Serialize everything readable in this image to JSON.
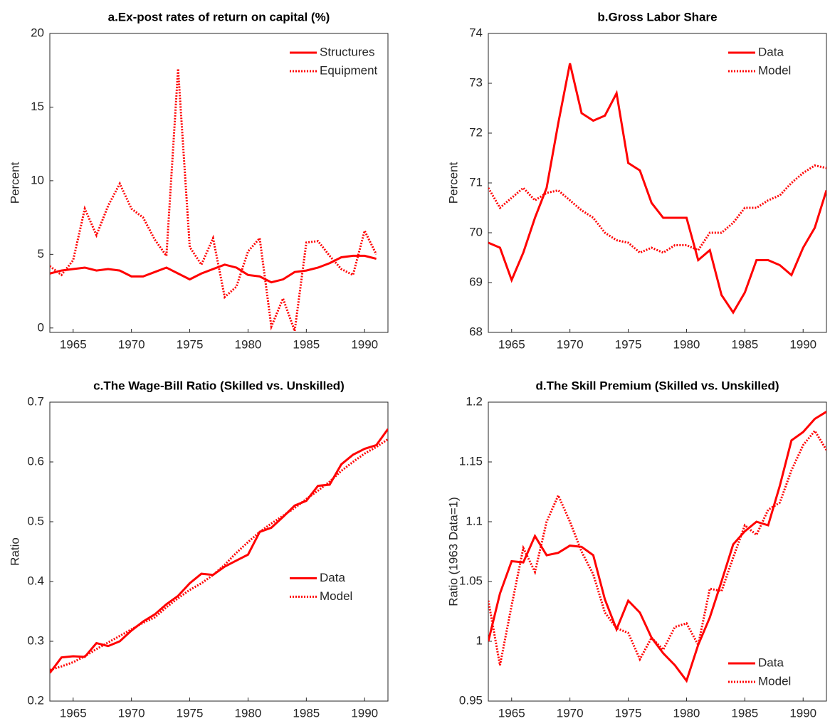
{
  "chart_data": [
    {
      "type": "line",
      "title": "a.Ex-post rates of return on capital (%)",
      "y_label": "Percent",
      "x": [
        1963,
        1964,
        1965,
        1966,
        1967,
        1968,
        1969,
        1970,
        1971,
        1972,
        1973,
        1974,
        1975,
        1976,
        1977,
        1978,
        1979,
        1980,
        1981,
        1982,
        1983,
        1984,
        1985,
        1986,
        1987,
        1988,
        1989,
        1990,
        1991
      ],
      "series": [
        {
          "name": "Structures",
          "color": "#ff0000",
          "dash": "solid",
          "values": [
            3.7,
            3.9,
            4.0,
            4.1,
            3.9,
            4.0,
            3.9,
            3.5,
            3.5,
            3.8,
            4.1,
            3.7,
            3.3,
            3.7,
            4.0,
            4.3,
            4.1,
            3.6,
            3.5,
            3.1,
            3.3,
            3.8,
            3.9,
            4.1,
            4.4,
            4.8,
            4.9,
            4.9,
            4.7
          ]
        },
        {
          "name": "Equipment",
          "color": "#ff0000",
          "dash": "dotted",
          "values": [
            4.2,
            3.6,
            4.6,
            8.1,
            6.3,
            8.3,
            9.8,
            8.1,
            7.5,
            6.0,
            4.9,
            17.6,
            5.5,
            4.3,
            6.1,
            2.1,
            2.8,
            5.2,
            6.1,
            0.1,
            2.0,
            -0.2,
            5.8,
            5.9,
            4.9,
            4.0,
            3.6,
            6.6,
            5.0
          ]
        }
      ],
      "xlim": [
        1963,
        1992
      ],
      "xticks": [
        1965,
        1970,
        1975,
        1980,
        1985,
        1990
      ],
      "ylim": [
        -0.3,
        20
      ],
      "yticks": [
        0,
        5,
        10,
        15,
        20
      ],
      "legend": "northeast"
    },
    {
      "type": "line",
      "title": "b.Gross Labor Share",
      "y_label": "Percent",
      "x": [
        1963,
        1964,
        1965,
        1966,
        1967,
        1968,
        1969,
        1970,
        1971,
        1972,
        1973,
        1974,
        1975,
        1976,
        1977,
        1978,
        1979,
        1980,
        1981,
        1982,
        1983,
        1984,
        1985,
        1986,
        1987,
        1988,
        1989,
        1990,
        1991,
        1992
      ],
      "series": [
        {
          "name": "Data",
          "color": "#ff0000",
          "dash": "solid",
          "values": [
            69.8,
            69.7,
            69.05,
            69.6,
            70.3,
            70.9,
            72.2,
            73.4,
            72.4,
            72.25,
            72.35,
            72.8,
            71.4,
            71.25,
            70.6,
            70.3,
            70.3,
            70.3,
            69.45,
            69.65,
            68.75,
            68.4,
            68.8,
            69.45,
            69.45,
            69.35,
            69.15,
            69.7,
            70.1,
            70.85
          ]
        },
        {
          "name": "Model",
          "color": "#ff0000",
          "dash": "dotted",
          "values": [
            70.9,
            70.5,
            70.7,
            70.9,
            70.65,
            70.8,
            70.85,
            70.65,
            70.45,
            70.3,
            70.0,
            69.85,
            69.8,
            69.6,
            69.7,
            69.6,
            69.75,
            69.75,
            69.65,
            70.0,
            70.0,
            70.2,
            70.5,
            70.5,
            70.65,
            70.75,
            71.0,
            71.2,
            71.35,
            71.3
          ]
        }
      ],
      "xlim": [
        1963,
        1992
      ],
      "xticks": [
        1965,
        1970,
        1975,
        1980,
        1985,
        1990
      ],
      "ylim": [
        68,
        74
      ],
      "yticks": [
        68,
        69,
        70,
        71,
        72,
        73,
        74
      ],
      "legend": "northeast"
    },
    {
      "type": "line",
      "title": "c.The Wage-Bill Ratio (Skilled vs. Unskilled)",
      "y_label": "Ratio",
      "x": [
        1963,
        1964,
        1965,
        1966,
        1967,
        1968,
        1969,
        1970,
        1971,
        1972,
        1973,
        1974,
        1975,
        1976,
        1977,
        1978,
        1979,
        1980,
        1981,
        1982,
        1983,
        1984,
        1985,
        1986,
        1987,
        1988,
        1989,
        1990,
        1991,
        1992
      ],
      "series": [
        {
          "name": "Data",
          "color": "#ff0000",
          "dash": "solid",
          "values": [
            0.247,
            0.273,
            0.275,
            0.274,
            0.297,
            0.292,
            0.3,
            0.318,
            0.333,
            0.345,
            0.362,
            0.376,
            0.397,
            0.413,
            0.411,
            0.425,
            0.435,
            0.445,
            0.483,
            0.49,
            0.508,
            0.527,
            0.535,
            0.56,
            0.562,
            0.596,
            0.612,
            0.622,
            0.628,
            0.655
          ]
        },
        {
          "name": "Model",
          "color": "#ff0000",
          "dash": "dotted",
          "values": [
            0.252,
            0.258,
            0.265,
            0.275,
            0.287,
            0.298,
            0.309,
            0.32,
            0.331,
            0.34,
            0.357,
            0.372,
            0.386,
            0.397,
            0.411,
            0.428,
            0.448,
            0.466,
            0.483,
            0.497,
            0.51,
            0.523,
            0.538,
            0.552,
            0.567,
            0.585,
            0.6,
            0.614,
            0.625,
            0.638
          ]
        }
      ],
      "xlim": [
        1963,
        1992
      ],
      "xticks": [
        1965,
        1970,
        1975,
        1980,
        1985,
        1990
      ],
      "ylim": [
        0.2,
        0.7
      ],
      "yticks": [
        0.2,
        0.3,
        0.4,
        0.5,
        0.6,
        0.7
      ],
      "legend": "east"
    },
    {
      "type": "line",
      "title": "d.The Skill Premium (Skilled vs. Unskilled)",
      "y_label": "Ratio (1963 Data=1)",
      "x": [
        1963,
        1964,
        1965,
        1966,
        1967,
        1968,
        1969,
        1970,
        1971,
        1972,
        1973,
        1974,
        1975,
        1976,
        1977,
        1978,
        1979,
        1980,
        1981,
        1982,
        1983,
        1984,
        1985,
        1986,
        1987,
        1988,
        1989,
        1990,
        1991,
        1992
      ],
      "series": [
        {
          "name": "Data",
          "color": "#ff0000",
          "dash": "solid",
          "values": [
            1.0,
            1.04,
            1.067,
            1.066,
            1.088,
            1.072,
            1.074,
            1.08,
            1.079,
            1.072,
            1.035,
            1.01,
            1.034,
            1.024,
            1.003,
            0.99,
            0.98,
            0.967,
            0.997,
            1.02,
            1.05,
            1.081,
            1.092,
            1.1,
            1.097,
            1.13,
            1.168,
            1.175,
            1.186,
            1.192
          ]
        },
        {
          "name": "Model",
          "color": "#ff0000",
          "dash": "dotted",
          "values": [
            1.034,
            0.98,
            1.03,
            1.078,
            1.058,
            1.1,
            1.122,
            1.1,
            1.075,
            1.056,
            1.024,
            1.011,
            1.007,
            0.985,
            1.003,
            0.993,
            1.012,
            1.015,
            0.997,
            1.044,
            1.042,
            1.07,
            1.097,
            1.089,
            1.11,
            1.116,
            1.143,
            1.164,
            1.176,
            1.16
          ]
        }
      ],
      "xlim": [
        1963,
        1992
      ],
      "xticks": [
        1965,
        1970,
        1975,
        1980,
        1985,
        1990
      ],
      "ylim": [
        0.95,
        1.2
      ],
      "yticks": [
        0.95,
        1,
        1.05,
        1.1,
        1.15,
        1.2
      ],
      "legend": "southeast"
    }
  ]
}
